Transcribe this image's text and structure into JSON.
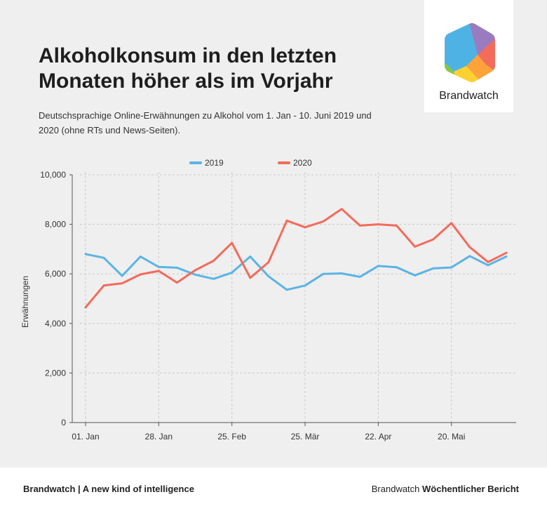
{
  "header": {
    "title": "Alkoholkonsum in den letzten Monaten höher als im Vorjahr",
    "subtitle": "Deutschsprachige Online-Erwähnungen zu Alkohol vom 1. Jan - 10. Juni 2019 und 2020 (ohne RTs und News-Seiten)."
  },
  "logo": {
    "name": "Brandwatch",
    "colors": [
      "#9b7bbf",
      "#f36b5b",
      "#ffa23a",
      "#ffd130",
      "#8dc63f",
      "#4eb3e4"
    ]
  },
  "footer": {
    "left": "Brandwatch | A new kind of intelligence",
    "right_prefix": "Brandwatch",
    "right_bold": "Wöchentlicher Bericht"
  },
  "chart_data": {
    "type": "line",
    "ylabel": "Erwähnungen",
    "xlabel": "",
    "ylim": [
      0,
      10000
    ],
    "yticks": [
      "0",
      "2,000",
      "4,000",
      "6,000",
      "8,000",
      "10,000"
    ],
    "ytick_values": [
      0,
      2000,
      4000,
      6000,
      8000,
      10000
    ],
    "xticks": [
      "01. Jan",
      "28. Jan",
      "25. Feb",
      "25. Mär",
      "22. Apr",
      "20. Mai"
    ],
    "xtick_index": [
      0,
      4,
      8,
      12,
      16,
      20
    ],
    "grid": true,
    "legend_position": "top-center",
    "series": [
      {
        "name": "2019",
        "color": "#5ab4e5",
        "values": [
          6800,
          6650,
          5920,
          6700,
          6280,
          6250,
          5970,
          5800,
          6050,
          6700,
          5900,
          5360,
          5530,
          6000,
          6020,
          5880,
          6320,
          6270,
          5940,
          6220,
          6260,
          6720,
          6350,
          6700
        ]
      },
      {
        "name": "2020",
        "color": "#f36b5b",
        "values": [
          4650,
          5530,
          5620,
          5980,
          6120,
          5650,
          6150,
          6530,
          7250,
          5840,
          6470,
          8150,
          7880,
          8120,
          8620,
          7950,
          8000,
          7950,
          7100,
          7390,
          8050,
          7080,
          6480,
          6850
        ]
      }
    ]
  }
}
